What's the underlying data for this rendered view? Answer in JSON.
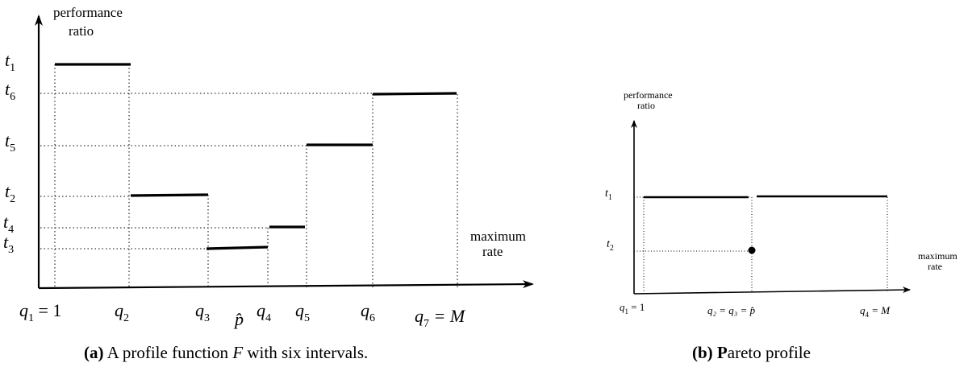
{
  "panel_a": {
    "ylabel_line1": "performance",
    "ylabel_line2": "ratio",
    "xlabel_line1": "maximum",
    "xlabel_line2": "rate",
    "y_ticks": [
      {
        "base": "t",
        "sub": "1",
        "level": 1
      },
      {
        "base": "t",
        "sub": "6",
        "level": 6
      },
      {
        "base": "t",
        "sub": "5",
        "level": 5
      },
      {
        "base": "t",
        "sub": "2",
        "level": 2
      },
      {
        "base": "t",
        "sub": "4",
        "level": 4
      },
      {
        "base": "t",
        "sub": "3",
        "level": 3
      }
    ],
    "x_ticks": [
      {
        "base": "q",
        "sub": "1",
        "suffix": " = 1"
      },
      {
        "base": "q",
        "sub": "2",
        "suffix": ""
      },
      {
        "base": "q",
        "sub": "3",
        "suffix": ""
      },
      {
        "base": "p̂",
        "sub": "",
        "suffix": ""
      },
      {
        "base": "q",
        "sub": "4",
        "suffix": ""
      },
      {
        "base": "q",
        "sub": "5",
        "suffix": ""
      },
      {
        "base": "q",
        "sub": "6",
        "suffix": ""
      },
      {
        "base": "q",
        "sub": "7",
        "suffix": " = M"
      }
    ],
    "segments": [
      {
        "from": "q1",
        "to": "q2",
        "level": "t1"
      },
      {
        "from": "q2",
        "to": "q3",
        "level": "t2"
      },
      {
        "from": "q3",
        "to": "q4",
        "level": "t3"
      },
      {
        "from": "q4",
        "to": "q5",
        "level": "t4"
      },
      {
        "from": "q5",
        "to": "q6",
        "level": "t5"
      },
      {
        "from": "q6",
        "to": "q7",
        "level": "t6"
      }
    ],
    "caption_bold": "(a)",
    "caption_text": " A profile function ",
    "caption_var": "F",
    "caption_rest": " with six intervals."
  },
  "panel_b": {
    "ylabel_line1": "performance",
    "ylabel_line2": "ratio",
    "xlabel_line1": "maximum",
    "xlabel_line2": "rate",
    "y_ticks": [
      {
        "base": "t",
        "sub": "1"
      },
      {
        "base": "t",
        "sub": "2"
      }
    ],
    "x_ticks": [
      {
        "base": "q",
        "sub": "1",
        "suffix": " = 1"
      },
      {
        "label": "q₂ = q₃ = p̂"
      },
      {
        "base": "q",
        "sub": "4",
        "suffix": " = M"
      }
    ],
    "segments": [
      {
        "from": "q1",
        "to": "q2",
        "level": "t1"
      },
      {
        "from": "q3",
        "to": "q4",
        "level": "t1"
      }
    ],
    "point": {
      "at": "p̂",
      "level": "t2"
    },
    "caption_bold": "(b) P",
    "caption_text": "areto profile"
  },
  "colors": {
    "ink": "#000000"
  }
}
